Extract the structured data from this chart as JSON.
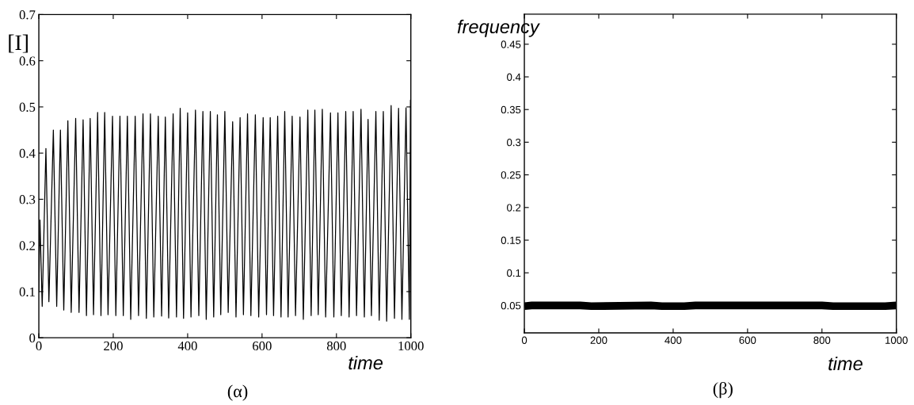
{
  "chart_data": [
    {
      "type": "line",
      "ylabel": "[I]",
      "xlabel": "time",
      "annotations": [
        "(α)"
      ],
      "xlim": [
        0,
        1000
      ],
      "ylim": [
        0,
        0.7
      ],
      "xticks": [
        0,
        200,
        400,
        600,
        800,
        1000
      ],
      "yticks": [
        0,
        0.1,
        0.2,
        0.3,
        0.4,
        0.5,
        0.6,
        0.7
      ],
      "series": [
        {
          "color": "#000000",
          "x": [
            0,
            3,
            9,
            19,
            27,
            39,
            48,
            58,
            67,
            78,
            87,
            99,
            108,
            119,
            128,
            138,
            147,
            158,
            167,
            177,
            186,
            198,
            207,
            218,
            227,
            238,
            247,
            259,
            268,
            280,
            289,
            300,
            309,
            321,
            330,
            340,
            349,
            361,
            370,
            380,
            389,
            400,
            409,
            421,
            430,
            441,
            450,
            461,
            470,
            480,
            489,
            500,
            509,
            521,
            530,
            541,
            550,
            561,
            570,
            582,
            591,
            603,
            612,
            622,
            631,
            642,
            651,
            661,
            670,
            681,
            690,
            702,
            711,
            723,
            732,
            742,
            751,
            762,
            771,
            784,
            793,
            804,
            813,
            825,
            834,
            845,
            854,
            866,
            875,
            885,
            894,
            906,
            915,
            926,
            935,
            947,
            956,
            967,
            976,
            987,
            996,
            999,
            1000
          ],
          "values": [
            0.1,
            0.255,
            0.068,
            0.41,
            0.078,
            0.45,
            0.068,
            0.45,
            0.06,
            0.47,
            0.055,
            0.475,
            0.055,
            0.472,
            0.048,
            0.475,
            0.05,
            0.488,
            0.048,
            0.488,
            0.05,
            0.48,
            0.048,
            0.48,
            0.048,
            0.48,
            0.04,
            0.48,
            0.048,
            0.485,
            0.042,
            0.485,
            0.045,
            0.48,
            0.047,
            0.478,
            0.043,
            0.485,
            0.045,
            0.497,
            0.042,
            0.487,
            0.045,
            0.493,
            0.048,
            0.49,
            0.04,
            0.49,
            0.045,
            0.483,
            0.05,
            0.49,
            0.055,
            0.468,
            0.045,
            0.477,
            0.05,
            0.485,
            0.048,
            0.483,
            0.045,
            0.477,
            0.05,
            0.477,
            0.048,
            0.48,
            0.045,
            0.49,
            0.045,
            0.48,
            0.048,
            0.478,
            0.04,
            0.493,
            0.048,
            0.493,
            0.05,
            0.495,
            0.045,
            0.487,
            0.045,
            0.487,
            0.048,
            0.49,
            0.045,
            0.49,
            0.048,
            0.495,
            0.045,
            0.473,
            0.048,
            0.49,
            0.038,
            0.49,
            0.036,
            0.503,
            0.042,
            0.497,
            0.04,
            0.498,
            0.04,
            0.515,
            0.23
          ]
        }
      ]
    },
    {
      "type": "line",
      "ylabel": "frequency",
      "xlabel": "time",
      "annotations": [
        "(β)"
      ],
      "xlim": [
        0,
        1000
      ],
      "ylim": [
        0.008,
        0.496
      ],
      "xticks": [
        0,
        200,
        400,
        600,
        800,
        1000
      ],
      "yticks": [
        0.05,
        0.1,
        0.15,
        0.2,
        0.25,
        0.3,
        0.35,
        0.4,
        0.45
      ],
      "series": [
        {
          "color": "#000000",
          "x": [
            0,
            20,
            150,
            180,
            340,
            370,
            430,
            460,
            800,
            830,
            970,
            1000
          ],
          "values": [
            0.049,
            0.05,
            0.05,
            0.049,
            0.05,
            0.049,
            0.049,
            0.05,
            0.05,
            0.049,
            0.049,
            0.05
          ]
        }
      ]
    }
  ]
}
